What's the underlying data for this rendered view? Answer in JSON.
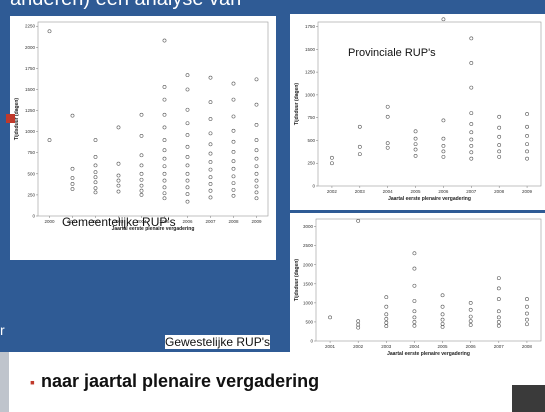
{
  "slide": {
    "title_fragment": "anderen) een analyse van",
    "bullet": "naar jaartal plenaire vergadering",
    "edge_text": "r"
  },
  "colors": {
    "background": "#2f5b95",
    "point": "#555555",
    "bullet": "#c0392b"
  },
  "chart_data": [
    {
      "type": "scatter",
      "title": "",
      "caption": "Gemeentelijke RUP's",
      "xlabel": "Jaartal eerste plenaire vergadering",
      "ylabel": "Tijdsduur (dagen)",
      "xticks": [
        "2000",
        "2001",
        "2002",
        "2003",
        "2004",
        "2005",
        "2006",
        "2007",
        "2008",
        "2009"
      ],
      "yticks": [
        0,
        250,
        500,
        750,
        1000,
        1250,
        1500,
        1750,
        2000,
        2250
      ],
      "ylim": [
        0,
        2300
      ],
      "grid": false,
      "series": [
        {
          "points": [
            [
              "2000",
              2190
            ],
            [
              "2000",
              900
            ],
            [
              "2001",
              1190
            ],
            [
              "2001",
              560
            ],
            [
              "2001",
              450
            ],
            [
              "2001",
              380
            ],
            [
              "2001",
              320
            ],
            [
              "2002",
              900
            ],
            [
              "2002",
              700
            ],
            [
              "2002",
              600
            ],
            [
              "2002",
              520
            ],
            [
              "2002",
              460
            ],
            [
              "2002",
              400
            ],
            [
              "2002",
              330
            ],
            [
              "2002",
              280
            ],
            [
              "2003",
              1050
            ],
            [
              "2003",
              620
            ],
            [
              "2003",
              480
            ],
            [
              "2003",
              420
            ],
            [
              "2003",
              360
            ],
            [
              "2003",
              290
            ],
            [
              "2004",
              1200
            ],
            [
              "2004",
              950
            ],
            [
              "2004",
              720
            ],
            [
              "2004",
              600
            ],
            [
              "2004",
              500
            ],
            [
              "2004",
              430
            ],
            [
              "2004",
              360
            ],
            [
              "2004",
              300
            ],
            [
              "2004",
              250
            ],
            [
              "2005",
              2080
            ],
            [
              "2005",
              1530
            ],
            [
              "2005",
              1380
            ],
            [
              "2005",
              1200
            ],
            [
              "2005",
              1050
            ],
            [
              "2005",
              900
            ],
            [
              "2005",
              780
            ],
            [
              "2005",
              680
            ],
            [
              "2005",
              590
            ],
            [
              "2005",
              500
            ],
            [
              "2005",
              420
            ],
            [
              "2005",
              340
            ],
            [
              "2005",
              270
            ],
            [
              "2005",
              210
            ],
            [
              "2006",
              1670
            ],
            [
              "2006",
              1500
            ],
            [
              "2006",
              1260
            ],
            [
              "2006",
              1100
            ],
            [
              "2006",
              960
            ],
            [
              "2006",
              820
            ],
            [
              "2006",
              700
            ],
            [
              "2006",
              600
            ],
            [
              "2006",
              500
            ],
            [
              "2006",
              420
            ],
            [
              "2006",
              340
            ],
            [
              "2006",
              260
            ],
            [
              "2006",
              170
            ],
            [
              "2007",
              1640
            ],
            [
              "2007",
              1350
            ],
            [
              "2007",
              1150
            ],
            [
              "2007",
              980
            ],
            [
              "2007",
              850
            ],
            [
              "2007",
              740
            ],
            [
              "2007",
              640
            ],
            [
              "2007",
              550
            ],
            [
              "2007",
              460
            ],
            [
              "2007",
              380
            ],
            [
              "2007",
              300
            ],
            [
              "2007",
              220
            ],
            [
              "2008",
              1570
            ],
            [
              "2008",
              1380
            ],
            [
              "2008",
              1180
            ],
            [
              "2008",
              1010
            ],
            [
              "2008",
              880
            ],
            [
              "2008",
              760
            ],
            [
              "2008",
              650
            ],
            [
              "2008",
              560
            ],
            [
              "2008",
              470
            ],
            [
              "2008",
              390
            ],
            [
              "2008",
              310
            ],
            [
              "2008",
              240
            ],
            [
              "2009",
              1620
            ],
            [
              "2009",
              1320
            ],
            [
              "2009",
              1080
            ],
            [
              "2009",
              900
            ],
            [
              "2009",
              780
            ],
            [
              "2009",
              680
            ],
            [
              "2009",
              590
            ],
            [
              "2009",
              500
            ],
            [
              "2009",
              420
            ],
            [
              "2009",
              350
            ],
            [
              "2009",
              280
            ],
            [
              "2009",
              210
            ]
          ]
        }
      ]
    },
    {
      "type": "scatter",
      "title": "Provinciale RUP's",
      "xlabel": "Jaartal eerste plenaire vergadering",
      "ylabel": "Tijdsduur (dagen)",
      "xticks": [
        "2002",
        "2003",
        "2004",
        "2005",
        "2006",
        "2007",
        "2008",
        "2009"
      ],
      "yticks": [
        0,
        250,
        500,
        750,
        1000,
        1250,
        1500,
        1750
      ],
      "ylim": [
        0,
        1800
      ],
      "grid": false,
      "series": [
        {
          "points": [
            [
              "2002",
              310
            ],
            [
              "2002",
              250
            ],
            [
              "2003",
              650
            ],
            [
              "2003",
              430
            ],
            [
              "2003",
              350
            ],
            [
              "2004",
              870
            ],
            [
              "2004",
              760
            ],
            [
              "2004",
              470
            ],
            [
              "2004",
              420
            ],
            [
              "2005",
              600
            ],
            [
              "2005",
              520
            ],
            [
              "2005",
              460
            ],
            [
              "2005",
              400
            ],
            [
              "2005",
              330
            ],
            [
              "2006",
              1830
            ],
            [
              "2006",
              720
            ],
            [
              "2006",
              520
            ],
            [
              "2006",
              440
            ],
            [
              "2006",
              380
            ],
            [
              "2006",
              320
            ],
            [
              "2007",
              1620
            ],
            [
              "2007",
              1350
            ],
            [
              "2007",
              1080
            ],
            [
              "2007",
              800
            ],
            [
              "2007",
              680
            ],
            [
              "2007",
              590
            ],
            [
              "2007",
              510
            ],
            [
              "2007",
              440
            ],
            [
              "2007",
              370
            ],
            [
              "2007",
              300
            ],
            [
              "2008",
              760
            ],
            [
              "2008",
              640
            ],
            [
              "2008",
              540
            ],
            [
              "2008",
              450
            ],
            [
              "2008",
              380
            ],
            [
              "2008",
              320
            ],
            [
              "2009",
              790
            ],
            [
              "2009",
              650
            ],
            [
              "2009",
              550
            ],
            [
              "2009",
              460
            ],
            [
              "2009",
              380
            ],
            [
              "2009",
              300
            ]
          ]
        }
      ]
    },
    {
      "type": "scatter",
      "title": "",
      "caption": "Gewestelijke RUP's",
      "xlabel": "Jaartal eerste plenaire vergadering",
      "ylabel": "Tijdsduur (dagen)",
      "xticks": [
        "2001",
        "2002",
        "2003",
        "2004",
        "2005",
        "2006",
        "2007",
        "2008"
      ],
      "yticks": [
        0,
        500,
        1000,
        1500,
        2000,
        2500,
        3000
      ],
      "ylim": [
        0,
        3200
      ],
      "grid": false,
      "series": [
        {
          "points": [
            [
              "2001",
              620
            ],
            [
              "2002",
              3150
            ],
            [
              "2002",
              520
            ],
            [
              "2002",
              430
            ],
            [
              "2002",
              350
            ],
            [
              "2003",
              1150
            ],
            [
              "2003",
              900
            ],
            [
              "2003",
              700
            ],
            [
              "2003",
              580
            ],
            [
              "2003",
              480
            ],
            [
              "2003",
              390
            ],
            [
              "2004",
              2300
            ],
            [
              "2004",
              1900
            ],
            [
              "2004",
              1450
            ],
            [
              "2004",
              1050
            ],
            [
              "2004",
              780
            ],
            [
              "2004",
              620
            ],
            [
              "2004",
              500
            ],
            [
              "2004",
              400
            ],
            [
              "2005",
              1200
            ],
            [
              "2005",
              900
            ],
            [
              "2005",
              700
            ],
            [
              "2005",
              560
            ],
            [
              "2005",
              450
            ],
            [
              "2005",
              370
            ],
            [
              "2006",
              1000
            ],
            [
              "2006",
              820
            ],
            [
              "2006",
              640
            ],
            [
              "2006",
              520
            ],
            [
              "2006",
              420
            ],
            [
              "2007",
              1650
            ],
            [
              "2007",
              1380
            ],
            [
              "2007",
              1100
            ],
            [
              "2007",
              780
            ],
            [
              "2007",
              620
            ],
            [
              "2007",
              500
            ],
            [
              "2007",
              400
            ],
            [
              "2008",
              1100
            ],
            [
              "2008",
              900
            ],
            [
              "2008",
              720
            ],
            [
              "2008",
              560
            ],
            [
              "2008",
              440
            ]
          ]
        }
      ]
    }
  ]
}
